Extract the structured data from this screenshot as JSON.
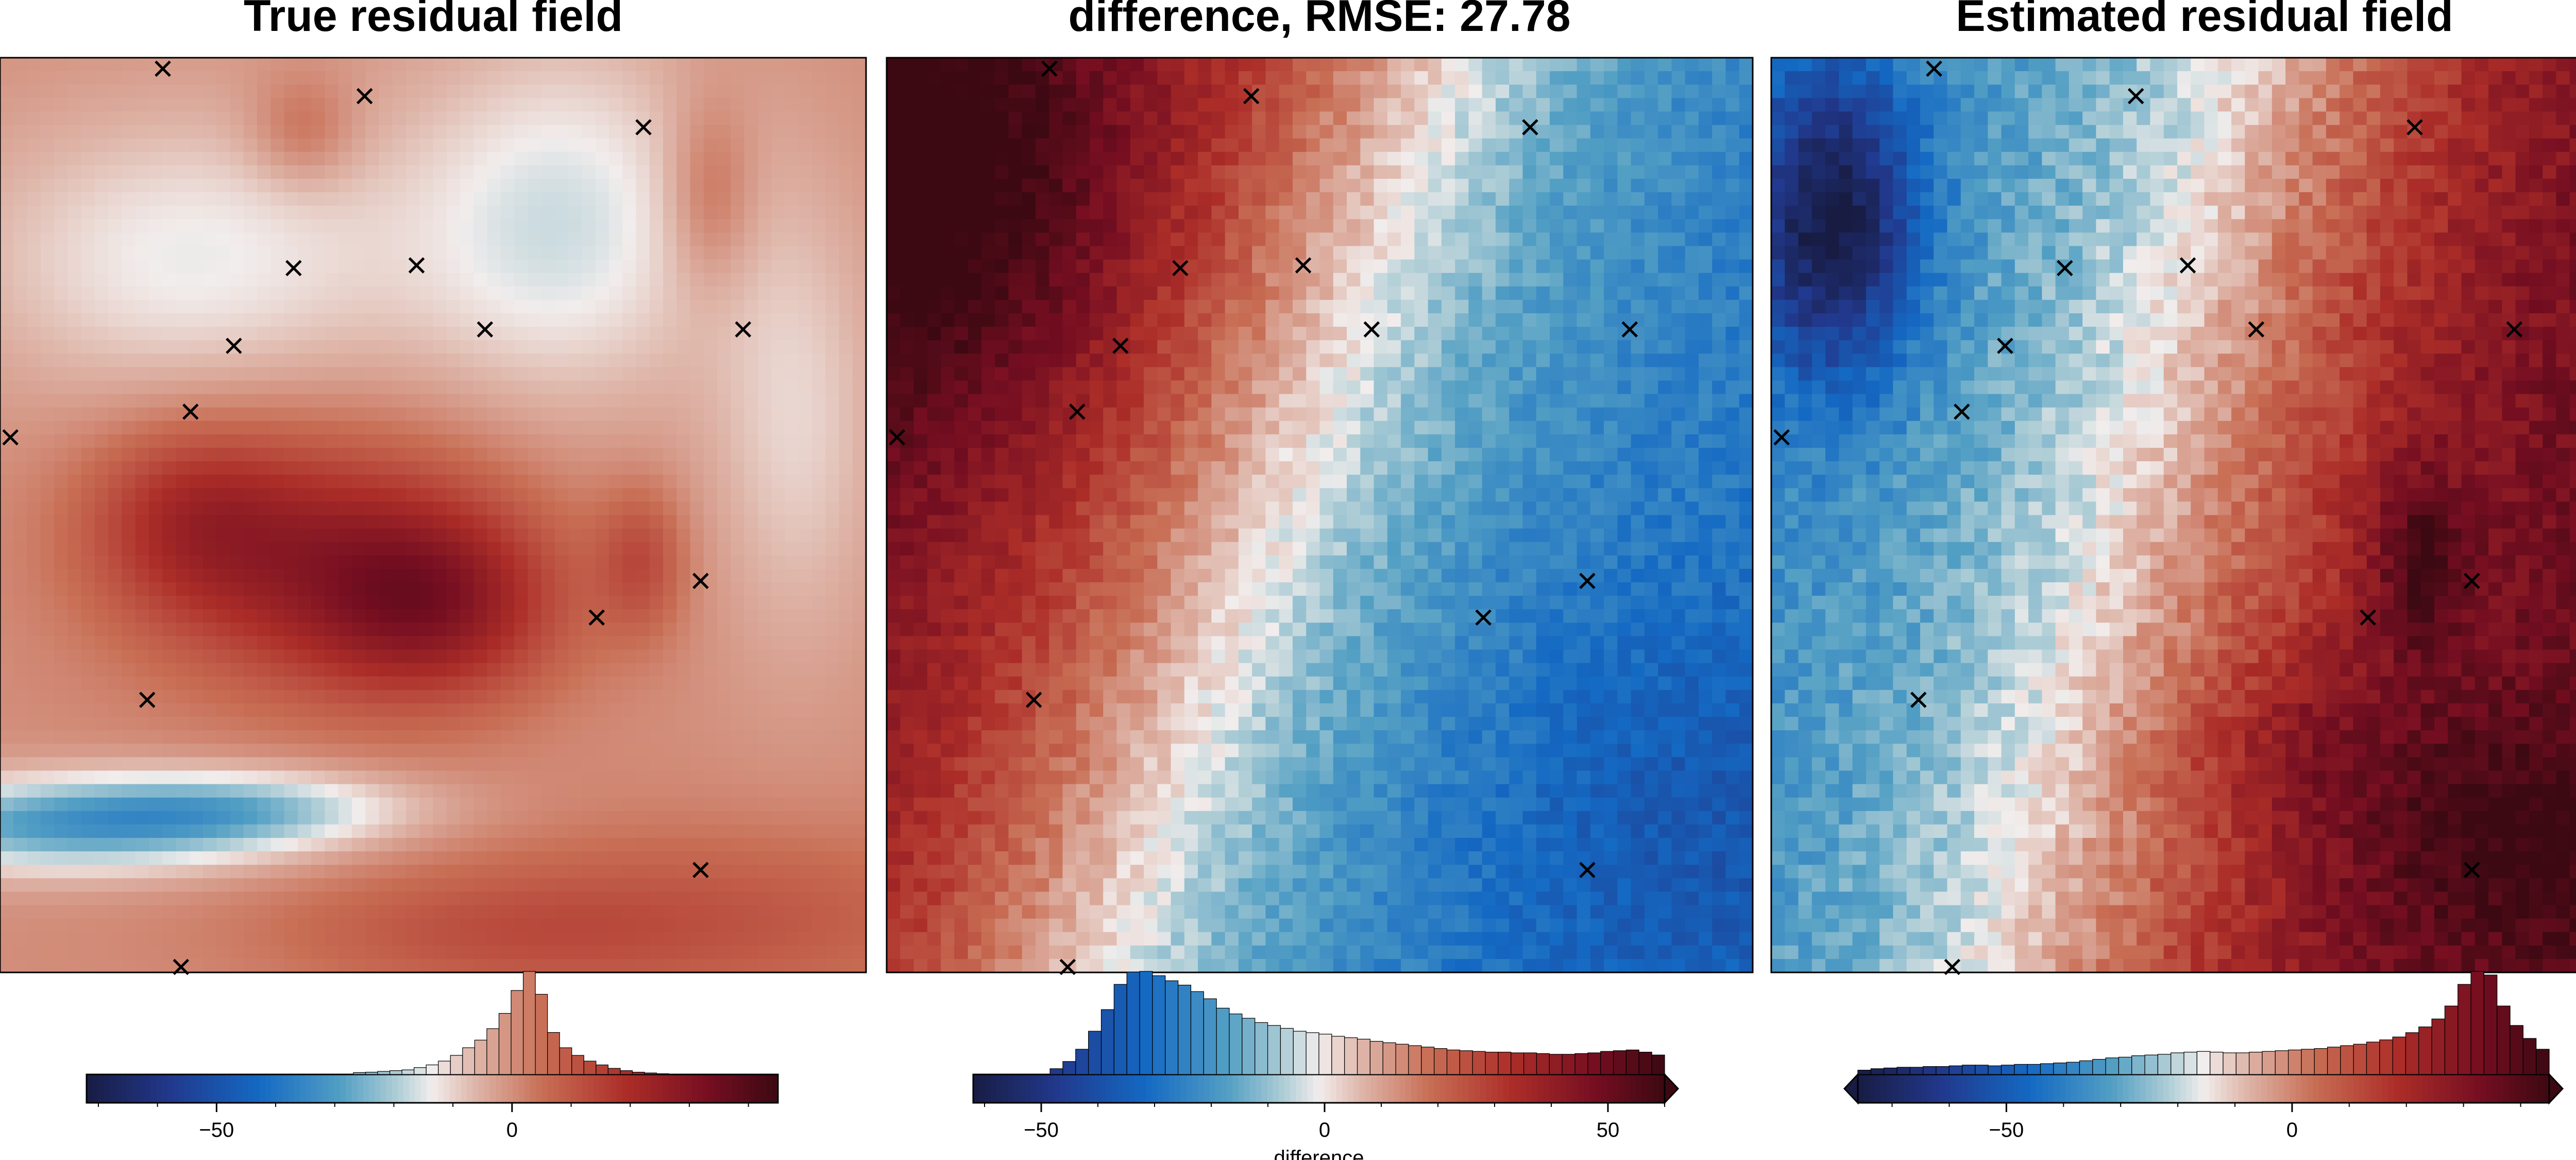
{
  "figure": {
    "panels_count": 3
  },
  "chart_data": [
    {
      "type": "heatmap",
      "title": "True residual field",
      "field_model": "true",
      "colormap": "balance",
      "colors": {
        "low": "#1a1a40",
        "mid": "#f0ecec",
        "high": "#3c0912"
      },
      "color_range": [
        -72,
        45
      ],
      "extend": "neither",
      "colorbar": {
        "label": "",
        "ticks": [
          -50,
          0
        ],
        "tick_labels": [
          "−50",
          "0"
        ],
        "histogram": [
          0,
          0,
          0,
          0,
          0,
          0,
          0,
          0,
          0,
          0,
          0,
          0,
          0,
          0,
          0,
          0,
          0,
          0,
          0,
          0,
          0,
          0,
          0.5,
          0.6,
          0.8,
          1,
          1.2,
          1.8,
          2.5,
          3.5,
          5,
          7,
          9,
          12,
          16,
          22,
          27,
          21,
          11,
          7,
          5,
          3.5,
          2.5,
          1.6,
          1,
          0.6,
          0.4,
          0.2,
          0,
          0,
          0,
          0,
          0,
          0,
          0,
          0,
          0
        ]
      }
    },
    {
      "type": "heatmap",
      "title": "difference, RMSE: 27.78",
      "field_model": "difference",
      "colormap": "balance",
      "colors": {
        "low": "#1a1a40",
        "mid": "#f0ecec",
        "high": "#3c0912"
      },
      "color_range": [
        -62,
        60
      ],
      "extend": "max",
      "colorbar": {
        "label": "difference",
        "ticks": [
          -50,
          0,
          50
        ],
        "tick_labels": [
          "−50",
          "0",
          "50"
        ],
        "histogram": [
          0,
          0,
          0,
          0,
          0,
          0,
          0.8,
          1.8,
          3.5,
          6,
          9,
          12.5,
          14.2,
          14.3,
          13.7,
          13,
          12.4,
          11.5,
          10.5,
          9.2,
          8.4,
          7.8,
          7.2,
          6.8,
          6.4,
          6.0,
          5.8,
          5.6,
          5.3,
          5.1,
          4.9,
          4.6,
          4.4,
          4.2,
          4.0,
          3.8,
          3.6,
          3.4,
          3.3,
          3.2,
          3.1,
          3.1,
          3.0,
          3.0,
          2.9,
          2.8,
          2.8,
          2.9,
          3.0,
          3.2,
          3.3,
          3.4,
          3.1,
          2.7
        ]
      }
    },
    {
      "type": "heatmap",
      "title": "Estimated residual field",
      "field_model": "estimated",
      "colormap": "balance",
      "colors": {
        "low": "#1a1a40",
        "mid": "#f0ecec",
        "high": "#3c0912"
      },
      "color_range": [
        -76,
        45
      ],
      "extend": "both",
      "colorbar": {
        "label": "",
        "ticks": [
          -50,
          0
        ],
        "tick_labels": [
          "−50",
          "0"
        ],
        "histogram": [
          0.6,
          0.8,
          0.9,
          1.0,
          1.0,
          1.1,
          1.1,
          1.2,
          1.3,
          1.3,
          1.2,
          1.3,
          1.4,
          1.4,
          1.5,
          1.6,
          1.7,
          1.9,
          2.1,
          2.3,
          2.4,
          2.6,
          2.7,
          2.8,
          3.0,
          3.1,
          3.2,
          3.1,
          3.0,
          3.0,
          3.1,
          3.2,
          3.3,
          3.4,
          3.5,
          3.6,
          3.8,
          4.0,
          4.2,
          4.5,
          4.8,
          5.2,
          5.8,
          6.6,
          7.7,
          9.5,
          12.5,
          14.3,
          13.8,
          9.5,
          6.8,
          5.0,
          3.5
        ]
      }
    }
  ],
  "markers_note": "x",
  "markers": [
    {
      "x": 0.188,
      "y": 0.988
    },
    {
      "x": 0.421,
      "y": 0.958
    },
    {
      "x": 0.743,
      "y": 0.924
    },
    {
      "x": 0.339,
      "y": 0.77
    },
    {
      "x": 0.481,
      "y": 0.773
    },
    {
      "x": 0.27,
      "y": 0.685
    },
    {
      "x": 0.56,
      "y": 0.703
    },
    {
      "x": 0.858,
      "y": 0.703
    },
    {
      "x": 0.22,
      "y": 0.613
    },
    {
      "x": 0.012,
      "y": 0.585
    },
    {
      "x": 0.809,
      "y": 0.428
    },
    {
      "x": 0.689,
      "y": 0.388
    },
    {
      "x": 0.17,
      "y": 0.298
    },
    {
      "x": 0.809,
      "y": 0.112
    },
    {
      "x": 0.209,
      "y": 0.006
    }
  ]
}
